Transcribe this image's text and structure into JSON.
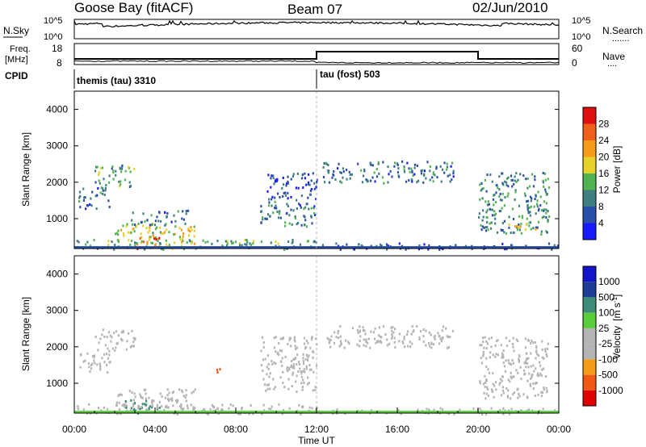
{
  "header": {
    "station": "Goose Bay (fitACF)",
    "beam": "Beam 07",
    "date": "02/Jun/2010"
  },
  "noise_panel": {
    "left_label": "N.Sky",
    "right_label": "N.Search",
    "right_label_dots": ".......",
    "left_ticks": [
      "10^5",
      "10^0"
    ],
    "right_ticks": [
      "10^5",
      "10^0"
    ]
  },
  "freq_panel": {
    "left_label_line1": "Freq.",
    "left_label_line2": "[MHz]",
    "right_label": "Nave",
    "right_label_dots": "....",
    "left_ticks": [
      "18",
      "8"
    ],
    "right_ticks": [
      "60",
      "0"
    ]
  },
  "cpid_panel": {
    "label": "CPID",
    "segments": [
      {
        "name": "themis (tau) 3310",
        "start_hour": 0,
        "end_hour": 12
      },
      {
        "name": "tau (fost) 503",
        "start_hour": 12,
        "end_hour": 24
      }
    ]
  },
  "colors": {
    "power_scale": [
      "#1a1aff",
      "#2a4fa8",
      "#3f7f7f",
      "#52b352",
      "#e6d22a",
      "#f59b1a",
      "#f0601a",
      "#e01010"
    ],
    "velocity_scale": [
      "#e00000",
      "#f05a14",
      "#f59b1a",
      "#b4b4b4",
      "#b4b4b4",
      "#5acd3c",
      "#3c8c78",
      "#1e3c96",
      "#1414c8"
    ]
  },
  "chart_data": [
    {
      "type": "heatmap",
      "name": "power",
      "ylabel": "Slant Range [km]",
      "xlabel": "",
      "xlim": [
        0,
        24
      ],
      "ylim": [
        180,
        4500
      ],
      "yticks": [
        "1000",
        "2000",
        "3000",
        "4000"
      ],
      "colorbar_label": "Power [dB]",
      "colorbar_ticks": [
        "4",
        "8",
        "12",
        "16",
        "20",
        "24",
        "28"
      ],
      "colorbar_range": [
        0,
        30
      ],
      "regions": [
        {
          "t0": 0.2,
          "t1": 1.8,
          "r0": 1300,
          "r1": 1900,
          "level": 8
        },
        {
          "t0": 1.0,
          "t1": 3.0,
          "r0": 1900,
          "r1": 2500,
          "level": 12
        },
        {
          "t0": 2.0,
          "t1": 6.0,
          "r0": 300,
          "r1": 900,
          "level": 16
        },
        {
          "t0": 2.8,
          "t1": 5.6,
          "r0": 850,
          "r1": 1250,
          "level": 8
        },
        {
          "t0": 3.0,
          "t1": 4.2,
          "r0": 200,
          "r1": 500,
          "level": 24
        },
        {
          "t0": 0.0,
          "t1": 12.0,
          "r0": 180,
          "r1": 450,
          "level": 12
        },
        {
          "t0": 9.2,
          "t1": 12.0,
          "r0": 800,
          "r1": 1500,
          "level": 8
        },
        {
          "t0": 9.5,
          "t1": 12.0,
          "r0": 1500,
          "r1": 2300,
          "level": 6
        },
        {
          "t0": 12.0,
          "t1": 24.0,
          "r0": 180,
          "r1": 350,
          "level": 6
        },
        {
          "t0": 12.3,
          "t1": 18.8,
          "r0": 2000,
          "r1": 2600,
          "level": 8
        },
        {
          "t0": 20.0,
          "t1": 23.5,
          "r0": 600,
          "r1": 2300,
          "level": 10
        },
        {
          "t0": 21.5,
          "t1": 23.0,
          "r0": 700,
          "r1": 900,
          "level": 18
        }
      ]
    },
    {
      "type": "heatmap",
      "name": "velocity",
      "ylabel": "Slant Range [km]",
      "xlabel": "Time UT",
      "xlim": [
        0,
        24
      ],
      "ylim": [
        180,
        4500
      ],
      "xticks": [
        "00:00",
        "04:00",
        "08:00",
        "12:00",
        "16:00",
        "20:00",
        "00:00"
      ],
      "yticks": [
        "1000",
        "2000",
        "3000",
        "4000"
      ],
      "colorbar_label": "Velocity",
      "colorbar_unit": "[m s",
      "colorbar_unit_exp": "-1",
      "colorbar_unit_close": "]",
      "colorbar_ticks": [
        "1000",
        "500",
        "100",
        "25",
        "-25",
        "-100",
        "-500",
        "-1000"
      ],
      "regions": [
        {
          "t0": 0.2,
          "t1": 1.8,
          "r0": 1300,
          "r1": 1900,
          "level": 0
        },
        {
          "t0": 1.0,
          "t1": 3.0,
          "r0": 1900,
          "r1": 2500,
          "level": 0
        },
        {
          "t0": 2.0,
          "t1": 6.0,
          "r0": 300,
          "r1": 900,
          "level": 0
        },
        {
          "t0": 2.5,
          "t1": 4.2,
          "r0": 200,
          "r1": 600,
          "level": 150
        },
        {
          "t0": 0.0,
          "t1": 12.0,
          "r0": 180,
          "r1": 450,
          "level": 0
        },
        {
          "t0": 6.8,
          "t1": 7.2,
          "r0": 1300,
          "r1": 1500,
          "level": -150
        },
        {
          "t0": 9.2,
          "t1": 12.0,
          "r0": 800,
          "r1": 2300,
          "level": 0
        },
        {
          "t0": 12.0,
          "t1": 24.0,
          "r0": 180,
          "r1": 350,
          "level": 0
        },
        {
          "t0": 12.3,
          "t1": 18.8,
          "r0": 2000,
          "r1": 2600,
          "level": 0
        },
        {
          "t0": 20.0,
          "t1": 23.5,
          "r0": 600,
          "r1": 2300,
          "level": 0
        }
      ]
    }
  ]
}
